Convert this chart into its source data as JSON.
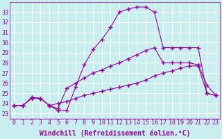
{
  "background_color": "#c8eef0",
  "grid_color": "#ffffff",
  "line_color": "#990099",
  "marker": "+",
  "marker_size": 4,
  "marker_linewidth": 1.0,
  "xlabel": "Windchill (Refroidissement éolien,°C)",
  "xlabel_fontsize": 7,
  "tick_fontsize": 6,
  "xlim": [
    -0.5,
    23.5
  ],
  "ylim": [
    22.5,
    34.0
  ],
  "xticks": [
    0,
    1,
    2,
    3,
    4,
    5,
    6,
    7,
    8,
    9,
    10,
    11,
    12,
    13,
    14,
    15,
    16,
    17,
    18,
    19,
    20,
    21,
    22,
    23
  ],
  "yticks": [
    23,
    24,
    25,
    26,
    27,
    28,
    29,
    30,
    31,
    32,
    33
  ],
  "series": [
    [
      23.8,
      23.8,
      24.6,
      24.5,
      23.8,
      23.3,
      23.3,
      25.6,
      27.8,
      29.3,
      30.3,
      31.5,
      33.0,
      33.3,
      33.5,
      33.5,
      33.0,
      29.5,
      29.5,
      29.5,
      29.5,
      29.5,
      25.0,
      24.8
    ],
    [
      23.8,
      23.8,
      24.6,
      24.5,
      23.8,
      23.5,
      25.5,
      26.0,
      26.5,
      27.0,
      27.3,
      27.7,
      28.0,
      28.4,
      28.8,
      29.2,
      29.5,
      28.0,
      28.0,
      28.0,
      28.0,
      27.8,
      25.8,
      24.8
    ],
    [
      23.8,
      23.8,
      24.5,
      24.5,
      23.8,
      24.0,
      24.2,
      24.5,
      24.8,
      25.0,
      25.2,
      25.4,
      25.6,
      25.8,
      26.0,
      26.3,
      26.7,
      27.0,
      27.2,
      27.5,
      27.7,
      27.7,
      25.0,
      24.8
    ]
  ]
}
